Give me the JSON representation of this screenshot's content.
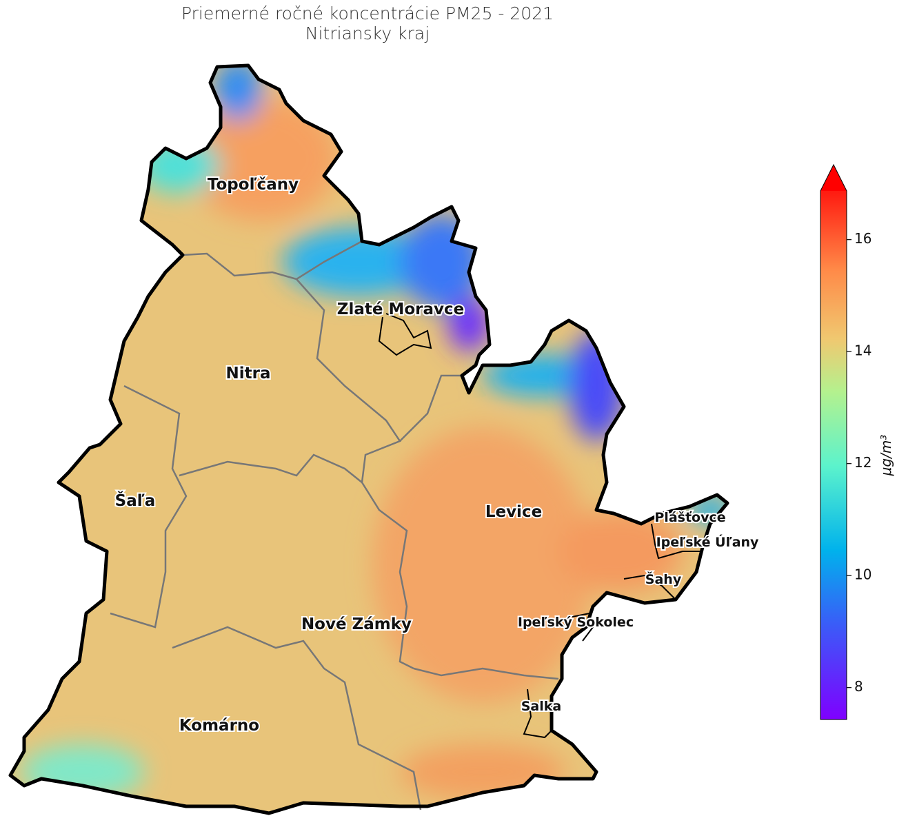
{
  "header": {
    "title_lines": [
      "Priemerné ročné koncentrácie PM25 - 2021",
      "Nitriansky kraj"
    ]
  },
  "map": {
    "labels": [
      {
        "text": "Topoľčany",
        "kind": "district"
      },
      {
        "text": "Zlaté Moravce",
        "kind": "district"
      },
      {
        "text": "Nitra",
        "kind": "district"
      },
      {
        "text": "Šaľa",
        "kind": "district"
      },
      {
        "text": "Levice",
        "kind": "district"
      },
      {
        "text": "Nové Zámky",
        "kind": "district"
      },
      {
        "text": "Komárno",
        "kind": "district"
      },
      {
        "text": "Plášťovce",
        "kind": "town"
      },
      {
        "text": "Ipeľské Úľany",
        "kind": "town"
      },
      {
        "text": "Šahy",
        "kind": "town"
      },
      {
        "text": "Ipeľský Sokolec",
        "kind": "town"
      },
      {
        "text": "Salka",
        "kind": "town"
      }
    ]
  },
  "colorbar": {
    "label": "μg/m³",
    "lim": [
      7.43,
      16.87
    ],
    "ticks": [
      8,
      10,
      12,
      14,
      16
    ],
    "extend": "max",
    "colormap": "rainbow"
  }
}
